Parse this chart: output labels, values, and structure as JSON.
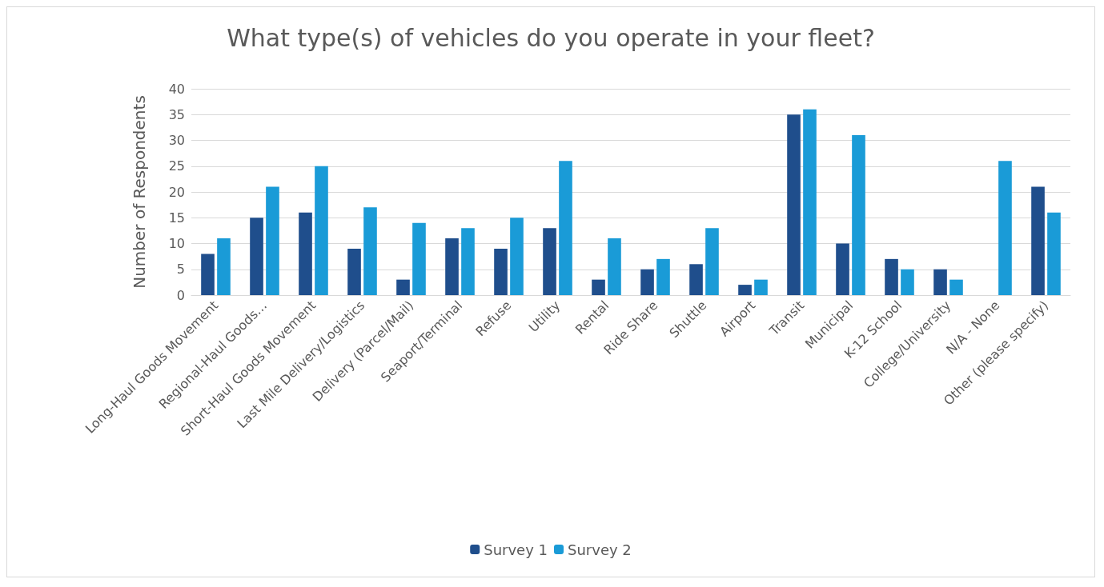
{
  "chart_data": {
    "type": "bar",
    "title": "What type(s) of vehicles do you operate in your fleet?",
    "ylabel": "Number of Respondents",
    "categories": [
      "Long-Haul Goods Movement",
      "Regional-Haul Goods…",
      "Short-Haul Goods Movement",
      "Last Mile Delivery/Logistics",
      "Delivery (Parcel/Mail)",
      "Seaport/Terminal",
      "Refuse",
      "Utility",
      "Rental",
      "Ride Share",
      "Shuttle",
      "Airport",
      "Transit",
      "Municipal",
      "K-12 School",
      "College/University",
      "N/A - None",
      "Other (please specify)"
    ],
    "series": [
      {
        "name": "Survey 1",
        "color": "#1f4e8c",
        "values": [
          8,
          15,
          16,
          9,
          3,
          11,
          9,
          13,
          3,
          5,
          6,
          2,
          35,
          10,
          7,
          5,
          null,
          21
        ]
      },
      {
        "name": "Survey 2",
        "color": "#1a9bd7",
        "values": [
          11,
          21,
          25,
          17,
          14,
          13,
          15,
          26,
          11,
          7,
          13,
          3,
          36,
          31,
          5,
          3,
          26,
          16
        ]
      }
    ],
    "ylim": [
      0,
      40
    ],
    "yticks": [
      0,
      5,
      10,
      15,
      20,
      25,
      30,
      35,
      40
    ],
    "grid": "y",
    "legend": "bottom"
  }
}
